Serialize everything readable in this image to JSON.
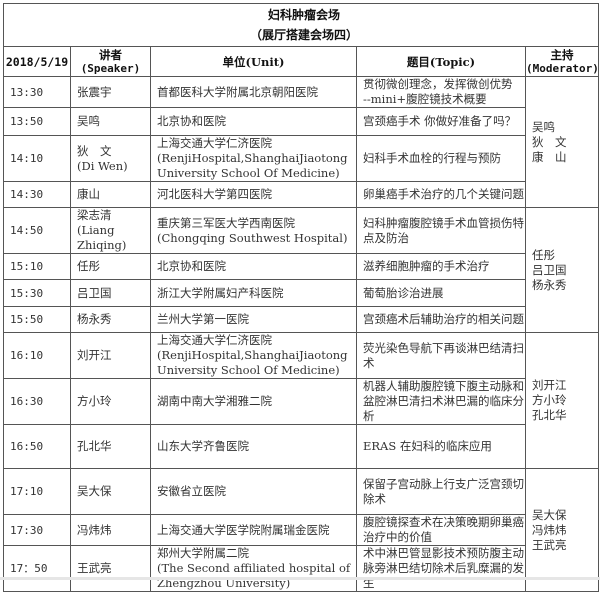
{
  "title": {
    "line1": "妇科肿瘤会场",
    "line2": "（展厅搭建会场四）"
  },
  "header": {
    "date": "2018/5/19",
    "speaker": [
      "讲者",
      "(Speaker)"
    ],
    "unit": "单位(Unit)",
    "topic": "题目(Topic)",
    "moderator": [
      "主持",
      "(Moderator)"
    ]
  },
  "rows": [
    {
      "time": "13:30",
      "speaker": [
        "张震宇"
      ],
      "unit": [
        "首都医科大学附属北京朝阳医院"
      ],
      "topic": [
        "贯彻微创理念，发挥微创优势",
        "--mini+腹腔镜技术概要"
      ]
    },
    {
      "time": "13:50",
      "speaker": [
        "吴鸣"
      ],
      "unit": [
        "北京协和医院"
      ],
      "topic": [
        "宫颈癌手术 你做好准备了吗？"
      ]
    },
    {
      "time": "14:10",
      "speaker": [
        "狄　文",
        "(Di Wen)"
      ],
      "unit": [
        "上海交通大学仁济医院",
        "(RenjiHospital,ShanghaiJiaotong",
        "University School Of Medicine)"
      ],
      "topic": [
        "妇科手术血栓的行程与预防"
      ]
    },
    {
      "time": "14:30",
      "speaker": [
        "康山"
      ],
      "unit": [
        "河北医科大学第四医院"
      ],
      "topic": [
        "卵巢癌手术治疗的几个关键问题"
      ]
    },
    {
      "time": "14:50",
      "speaker": [
        "梁志清",
        "(Liang",
        "Zhiqing)"
      ],
      "unit": [
        "重庆第三军医大学西南医院",
        "(Chongqing Southwest Hospital)"
      ],
      "topic": [
        "妇科肿瘤腹腔镜手术血管损伤特",
        "点及防治"
      ]
    },
    {
      "time": "15:10",
      "speaker": [
        "任彤"
      ],
      "unit": [
        "北京协和医院"
      ],
      "topic": [
        "滋养细胞肿瘤的手术治疗"
      ]
    },
    {
      "time": "15:30",
      "speaker": [
        "吕卫国"
      ],
      "unit": [
        "浙江大学附属妇产科医院"
      ],
      "topic": [
        "葡萄胎诊治进展"
      ]
    },
    {
      "time": "15:50",
      "speaker": [
        "杨永秀"
      ],
      "unit": [
        "兰州大学第一医院"
      ],
      "topic": [
        "宫颈癌术后辅助治疗的相关问题"
      ]
    },
    {
      "time": "16:10",
      "speaker": [
        "刘开江"
      ],
      "unit": [
        "上海交通大学仁济医院",
        "(RenjiHospital,ShanghaiJiaotong",
        "University School Of Medicine)"
      ],
      "topic": [
        "荧光染色导航下再谈淋巴结清扫",
        "术"
      ]
    },
    {
      "time": "16:30",
      "speaker": [
        "方小玲"
      ],
      "unit": [
        "湖南中南大学湘雅二院"
      ],
      "topic": [
        "机器人辅助腹腔镜下腹主动脉和",
        "盆腔淋巴清扫术淋巴漏的临床分",
        "析"
      ]
    },
    {
      "time": "16:50",
      "speaker": [
        "孔北华"
      ],
      "unit": [
        "山东大学齐鲁医院"
      ],
      "topic": [
        "ERAS 在妇科的临床应用"
      ]
    },
    {
      "time": "17:10",
      "speaker": [
        "吴大保"
      ],
      "unit": [
        "安徽省立医院"
      ],
      "topic": [
        "保留子宫动脉上行支广泛宫颈切",
        "除术"
      ]
    },
    {
      "time": "17:30",
      "speaker": [
        "冯炜炜"
      ],
      "unit": [
        "上海交通大学医学院附属瑞金医院"
      ],
      "topic": [
        "腹腔镜探查术在决策晚期卵巢癌",
        "治疗中的价值"
      ]
    },
    {
      "time": "17：50",
      "speaker": [
        "王武亮"
      ],
      "unit": [
        "郑州大学附属二院",
        "(The Second affiliated hospital of",
        "Zhengzhou University)"
      ],
      "topic": [
        "术中淋巴管显影技术预防腹主动",
        "脉旁淋巴结切除术后乳糜漏的发",
        "生"
      ]
    }
  ],
  "moderators": [
    {
      "names": [
        "吴鸣",
        "狄　文",
        "康　山"
      ]
    },
    {
      "names": [
        "任彤",
        "吕卫国",
        "杨永秀"
      ]
    },
    {
      "names": [
        "刘开江",
        "方小玲",
        "孔北华"
      ]
    },
    {
      "names": [
        "吴大保",
        "冯炜炜",
        "王武亮"
      ]
    }
  ]
}
